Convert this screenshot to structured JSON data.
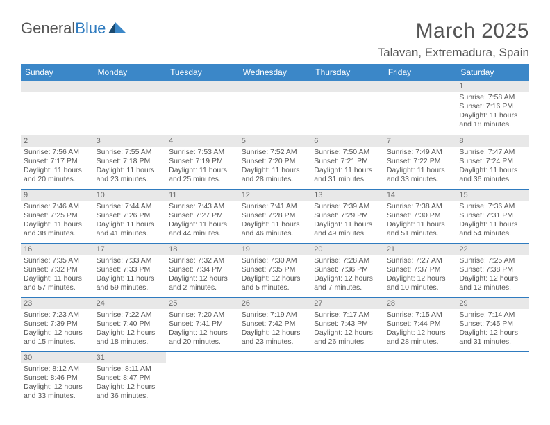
{
  "logo": {
    "text1": "General",
    "text2": "Blue"
  },
  "title": "March 2025",
  "location": "Talavan, Extremadura, Spain",
  "colors": {
    "header_bg": "#3b87c8",
    "border": "#2f7bbf",
    "daynum_bg": "#e8e8e8",
    "text": "#555555"
  },
  "day_headers": [
    "Sunday",
    "Monday",
    "Tuesday",
    "Wednesday",
    "Thursday",
    "Friday",
    "Saturday"
  ],
  "weeks": [
    [
      {
        "n": "",
        "sr": "",
        "ss": "",
        "dl": ""
      },
      {
        "n": "",
        "sr": "",
        "ss": "",
        "dl": ""
      },
      {
        "n": "",
        "sr": "",
        "ss": "",
        "dl": ""
      },
      {
        "n": "",
        "sr": "",
        "ss": "",
        "dl": ""
      },
      {
        "n": "",
        "sr": "",
        "ss": "",
        "dl": ""
      },
      {
        "n": "",
        "sr": "",
        "ss": "",
        "dl": ""
      },
      {
        "n": "1",
        "sr": "Sunrise: 7:58 AM",
        "ss": "Sunset: 7:16 PM",
        "dl": "Daylight: 11 hours and 18 minutes."
      }
    ],
    [
      {
        "n": "2",
        "sr": "Sunrise: 7:56 AM",
        "ss": "Sunset: 7:17 PM",
        "dl": "Daylight: 11 hours and 20 minutes."
      },
      {
        "n": "3",
        "sr": "Sunrise: 7:55 AM",
        "ss": "Sunset: 7:18 PM",
        "dl": "Daylight: 11 hours and 23 minutes."
      },
      {
        "n": "4",
        "sr": "Sunrise: 7:53 AM",
        "ss": "Sunset: 7:19 PM",
        "dl": "Daylight: 11 hours and 25 minutes."
      },
      {
        "n": "5",
        "sr": "Sunrise: 7:52 AM",
        "ss": "Sunset: 7:20 PM",
        "dl": "Daylight: 11 hours and 28 minutes."
      },
      {
        "n": "6",
        "sr": "Sunrise: 7:50 AM",
        "ss": "Sunset: 7:21 PM",
        "dl": "Daylight: 11 hours and 31 minutes."
      },
      {
        "n": "7",
        "sr": "Sunrise: 7:49 AM",
        "ss": "Sunset: 7:22 PM",
        "dl": "Daylight: 11 hours and 33 minutes."
      },
      {
        "n": "8",
        "sr": "Sunrise: 7:47 AM",
        "ss": "Sunset: 7:24 PM",
        "dl": "Daylight: 11 hours and 36 minutes."
      }
    ],
    [
      {
        "n": "9",
        "sr": "Sunrise: 7:46 AM",
        "ss": "Sunset: 7:25 PM",
        "dl": "Daylight: 11 hours and 38 minutes."
      },
      {
        "n": "10",
        "sr": "Sunrise: 7:44 AM",
        "ss": "Sunset: 7:26 PM",
        "dl": "Daylight: 11 hours and 41 minutes."
      },
      {
        "n": "11",
        "sr": "Sunrise: 7:43 AM",
        "ss": "Sunset: 7:27 PM",
        "dl": "Daylight: 11 hours and 44 minutes."
      },
      {
        "n": "12",
        "sr": "Sunrise: 7:41 AM",
        "ss": "Sunset: 7:28 PM",
        "dl": "Daylight: 11 hours and 46 minutes."
      },
      {
        "n": "13",
        "sr": "Sunrise: 7:39 AM",
        "ss": "Sunset: 7:29 PM",
        "dl": "Daylight: 11 hours and 49 minutes."
      },
      {
        "n": "14",
        "sr": "Sunrise: 7:38 AM",
        "ss": "Sunset: 7:30 PM",
        "dl": "Daylight: 11 hours and 51 minutes."
      },
      {
        "n": "15",
        "sr": "Sunrise: 7:36 AM",
        "ss": "Sunset: 7:31 PM",
        "dl": "Daylight: 11 hours and 54 minutes."
      }
    ],
    [
      {
        "n": "16",
        "sr": "Sunrise: 7:35 AM",
        "ss": "Sunset: 7:32 PM",
        "dl": "Daylight: 11 hours and 57 minutes."
      },
      {
        "n": "17",
        "sr": "Sunrise: 7:33 AM",
        "ss": "Sunset: 7:33 PM",
        "dl": "Daylight: 11 hours and 59 minutes."
      },
      {
        "n": "18",
        "sr": "Sunrise: 7:32 AM",
        "ss": "Sunset: 7:34 PM",
        "dl": "Daylight: 12 hours and 2 minutes."
      },
      {
        "n": "19",
        "sr": "Sunrise: 7:30 AM",
        "ss": "Sunset: 7:35 PM",
        "dl": "Daylight: 12 hours and 5 minutes."
      },
      {
        "n": "20",
        "sr": "Sunrise: 7:28 AM",
        "ss": "Sunset: 7:36 PM",
        "dl": "Daylight: 12 hours and 7 minutes."
      },
      {
        "n": "21",
        "sr": "Sunrise: 7:27 AM",
        "ss": "Sunset: 7:37 PM",
        "dl": "Daylight: 12 hours and 10 minutes."
      },
      {
        "n": "22",
        "sr": "Sunrise: 7:25 AM",
        "ss": "Sunset: 7:38 PM",
        "dl": "Daylight: 12 hours and 12 minutes."
      }
    ],
    [
      {
        "n": "23",
        "sr": "Sunrise: 7:23 AM",
        "ss": "Sunset: 7:39 PM",
        "dl": "Daylight: 12 hours and 15 minutes."
      },
      {
        "n": "24",
        "sr": "Sunrise: 7:22 AM",
        "ss": "Sunset: 7:40 PM",
        "dl": "Daylight: 12 hours and 18 minutes."
      },
      {
        "n": "25",
        "sr": "Sunrise: 7:20 AM",
        "ss": "Sunset: 7:41 PM",
        "dl": "Daylight: 12 hours and 20 minutes."
      },
      {
        "n": "26",
        "sr": "Sunrise: 7:19 AM",
        "ss": "Sunset: 7:42 PM",
        "dl": "Daylight: 12 hours and 23 minutes."
      },
      {
        "n": "27",
        "sr": "Sunrise: 7:17 AM",
        "ss": "Sunset: 7:43 PM",
        "dl": "Daylight: 12 hours and 26 minutes."
      },
      {
        "n": "28",
        "sr": "Sunrise: 7:15 AM",
        "ss": "Sunset: 7:44 PM",
        "dl": "Daylight: 12 hours and 28 minutes."
      },
      {
        "n": "29",
        "sr": "Sunrise: 7:14 AM",
        "ss": "Sunset: 7:45 PM",
        "dl": "Daylight: 12 hours and 31 minutes."
      }
    ],
    [
      {
        "n": "30",
        "sr": "Sunrise: 8:12 AM",
        "ss": "Sunset: 8:46 PM",
        "dl": "Daylight: 12 hours and 33 minutes."
      },
      {
        "n": "31",
        "sr": "Sunrise: 8:11 AM",
        "ss": "Sunset: 8:47 PM",
        "dl": "Daylight: 12 hours and 36 minutes."
      },
      {
        "n": "",
        "sr": "",
        "ss": "",
        "dl": ""
      },
      {
        "n": "",
        "sr": "",
        "ss": "",
        "dl": ""
      },
      {
        "n": "",
        "sr": "",
        "ss": "",
        "dl": ""
      },
      {
        "n": "",
        "sr": "",
        "ss": "",
        "dl": ""
      },
      {
        "n": "",
        "sr": "",
        "ss": "",
        "dl": ""
      }
    ]
  ]
}
